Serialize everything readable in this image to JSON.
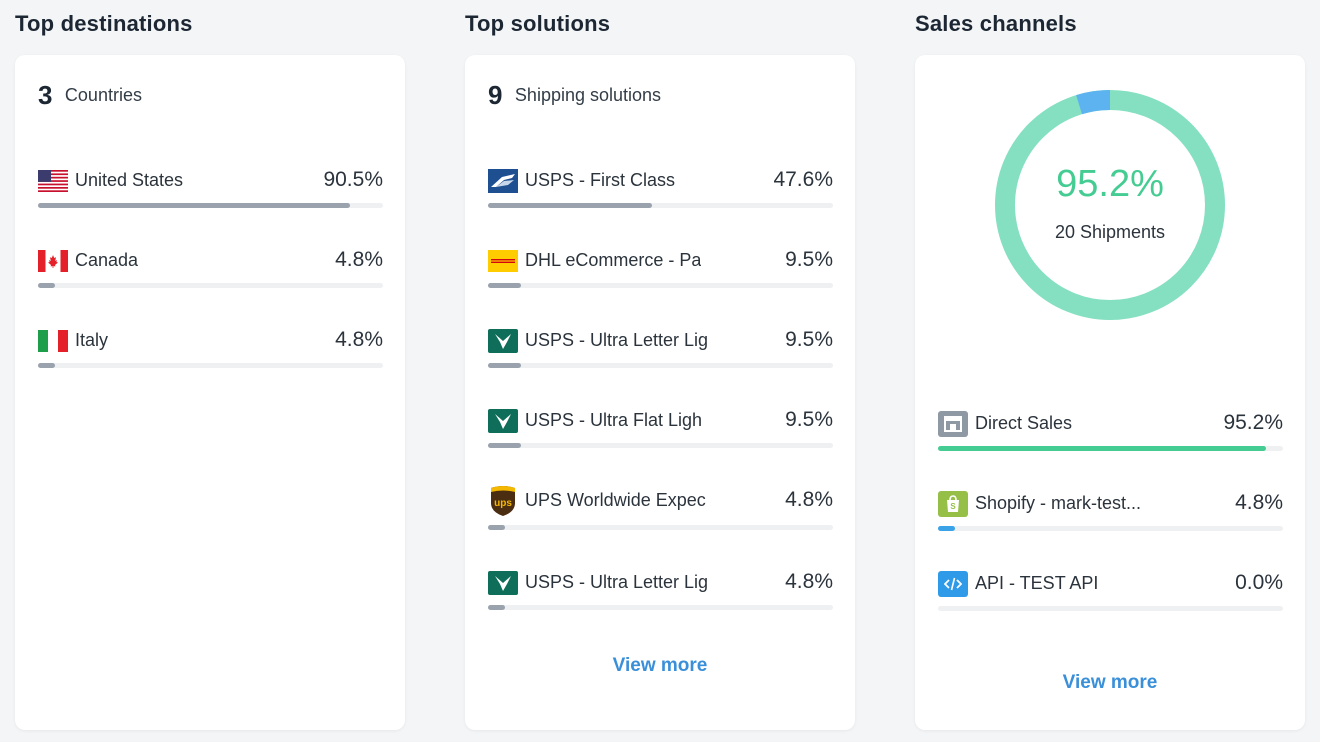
{
  "destinations": {
    "title": "Top destinations",
    "count": "3",
    "count_label": "Countries",
    "items": [
      {
        "name": "United States",
        "pct": "90.5%",
        "value": 0.905,
        "icon": "us-flag-icon"
      },
      {
        "name": "Canada",
        "pct": "4.8%",
        "value": 0.048,
        "icon": "canada-flag-icon"
      },
      {
        "name": "Italy",
        "pct": "4.8%",
        "value": 0.048,
        "icon": "italy-flag-icon"
      }
    ]
  },
  "solutions": {
    "title": "Top solutions",
    "count": "9",
    "count_label": "Shipping solutions",
    "items": [
      {
        "name": "USPS - First Class",
        "pct": "47.6%",
        "value": 0.476,
        "icon": "usps-eagle-icon"
      },
      {
        "name": "DHL eCommerce - Pa",
        "pct": "9.5%",
        "value": 0.095,
        "icon": "dhl-logo-icon"
      },
      {
        "name": "USPS - Ultra Letter Lig",
        "pct": "9.5%",
        "value": 0.095,
        "icon": "bird-logo-icon"
      },
      {
        "name": "USPS - Ultra Flat Ligh",
        "pct": "9.5%",
        "value": 0.095,
        "icon": "bird-logo-icon"
      },
      {
        "name": "UPS Worldwide Expec",
        "pct": "4.8%",
        "value": 0.048,
        "icon": "ups-shield-icon"
      },
      {
        "name": "USPS - Ultra Letter Lig",
        "pct": "4.8%",
        "value": 0.048,
        "icon": "bird-logo-icon"
      }
    ],
    "view_more": "View more"
  },
  "channels": {
    "title": "Sales channels",
    "donut": {
      "value": "95.2%",
      "shipments_count": "20",
      "shipments_label": "Shipments",
      "fraction": 0.952
    },
    "items": [
      {
        "name": "Direct Sales",
        "pct": "95.2%",
        "value": 0.952,
        "icon": "store-icon",
        "color": "#45cc93"
      },
      {
        "name": "Shopify - mark-test...",
        "pct": "4.8%",
        "value": 0.048,
        "icon": "shopify-bag-icon",
        "color": "#3aa3e8"
      },
      {
        "name": "API - TEST API",
        "pct": "0.0%",
        "value": 0.0,
        "icon": "code-icon",
        "color": "#3aa3e8"
      }
    ],
    "view_more": "View more"
  },
  "colors": {
    "donut_main": "#84e0c0",
    "donut_secondary": "#5cb3f0",
    "bar_default": "#9aa3ad",
    "link": "#3a8fd9"
  }
}
